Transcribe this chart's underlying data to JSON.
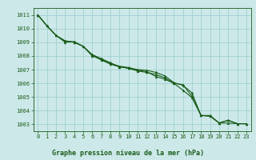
{
  "title": "Graphe pression niveau de la mer (hPa)",
  "bg_color": "#cce8e8",
  "grid_color": "#99cccc",
  "line_color": "#1a5c1a",
  "xlim": [
    -0.5,
    23.5
  ],
  "ylim": [
    1002.5,
    1011.5
  ],
  "yticks": [
    1003,
    1004,
    1005,
    1006,
    1007,
    1008,
    1009,
    1010,
    1011
  ],
  "xticks": [
    0,
    1,
    2,
    3,
    4,
    5,
    6,
    7,
    8,
    9,
    10,
    11,
    12,
    13,
    14,
    15,
    16,
    17,
    18,
    19,
    20,
    21,
    22,
    23
  ],
  "series1": [
    1011.0,
    1010.2,
    1009.5,
    1009.1,
    1009.0,
    1008.7,
    1008.0,
    1007.75,
    1007.45,
    1007.25,
    1007.15,
    1007.0,
    1006.95,
    1006.8,
    1006.55,
    1006.05,
    1005.85,
    1005.3,
    1003.65,
    1003.6,
    1003.1,
    1003.3,
    1003.05,
    1003.05
  ],
  "series2": [
    1011.0,
    1010.2,
    1009.5,
    1009.0,
    1009.05,
    1008.7,
    1008.05,
    1007.7,
    1007.4,
    1007.2,
    1007.1,
    1006.95,
    1006.85,
    1006.5,
    1006.3,
    1006.0,
    1005.9,
    1005.05,
    1003.65,
    1003.65,
    1003.1,
    1003.3,
    1003.05,
    1003.05
  ],
  "series3": [
    1011.0,
    1010.2,
    1009.5,
    1009.1,
    1009.0,
    1008.7,
    1008.1,
    1007.8,
    1007.5,
    1007.2,
    1007.1,
    1006.9,
    1006.8,
    1006.65,
    1006.4,
    1006.0,
    1005.5,
    1004.95,
    1003.65,
    1003.6,
    1003.1,
    1003.1,
    1003.05,
    1003.05
  ],
  "title_fontsize": 6,
  "tick_fontsize": 5
}
